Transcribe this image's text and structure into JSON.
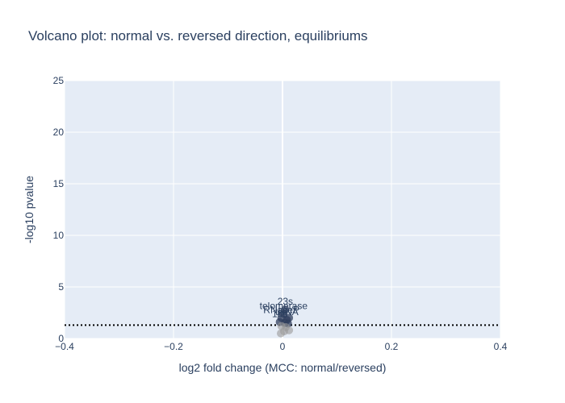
{
  "chart_data": {
    "type": "scatter",
    "title": "Volcano plot: normal vs. reversed direction, equilibriums",
    "xlabel": "log2 fold change (MCC: normal/reversed)",
    "ylabel": "-log10 pvalue",
    "xlim": [
      -0.4,
      0.4
    ],
    "ylim": [
      0,
      25
    ],
    "x_ticks": [
      "−0.4",
      "−0.2",
      "0",
      "0.2",
      "0.4"
    ],
    "x_tick_values": [
      -0.4,
      -0.2,
      0,
      0.2,
      0.4
    ],
    "y_ticks": [
      "0",
      "5",
      "10",
      "15",
      "20",
      "25"
    ],
    "y_tick_values": [
      0,
      5,
      10,
      15,
      20,
      25
    ],
    "threshold": {
      "y": 1.3,
      "style": "dotted"
    },
    "grid": true,
    "colors": {
      "plot_bg": "#e5ecf6",
      "grid": "#ffffff",
      "text": "#2a3f5f",
      "significant": "#2f3e5c",
      "nonsignificant": "#9a9a9a"
    },
    "points": [
      {
        "x": 0.005,
        "y": 2.8,
        "label": "23s",
        "significant": true
      },
      {
        "x": 0.002,
        "y": 2.4,
        "label": "telomerase",
        "significant": true
      },
      {
        "x": -0.002,
        "y": 2.0,
        "label": "RNaseP",
        "significant": true
      },
      {
        "x": 0.012,
        "y": 2.0,
        "label": "",
        "significant": true
      },
      {
        "x": 0.008,
        "y": 1.8,
        "label": "tRNA",
        "significant": true
      },
      {
        "x": -0.005,
        "y": 1.6,
        "label": "16s",
        "significant": true
      },
      {
        "x": 0.004,
        "y": 1.5,
        "label": "",
        "significant": true
      },
      {
        "x": 0.01,
        "y": 1.45,
        "label": "",
        "significant": true
      },
      {
        "x": -0.002,
        "y": 1.2,
        "label": "",
        "significant": false
      },
      {
        "x": 0.006,
        "y": 1.1,
        "label": "",
        "significant": false
      },
      {
        "x": 0.012,
        "y": 0.8,
        "label": "",
        "significant": false
      },
      {
        "x": -0.003,
        "y": 0.5,
        "label": "",
        "significant": false
      },
      {
        "x": 0.003,
        "y": 0.7,
        "label": "",
        "significant": false
      }
    ]
  }
}
